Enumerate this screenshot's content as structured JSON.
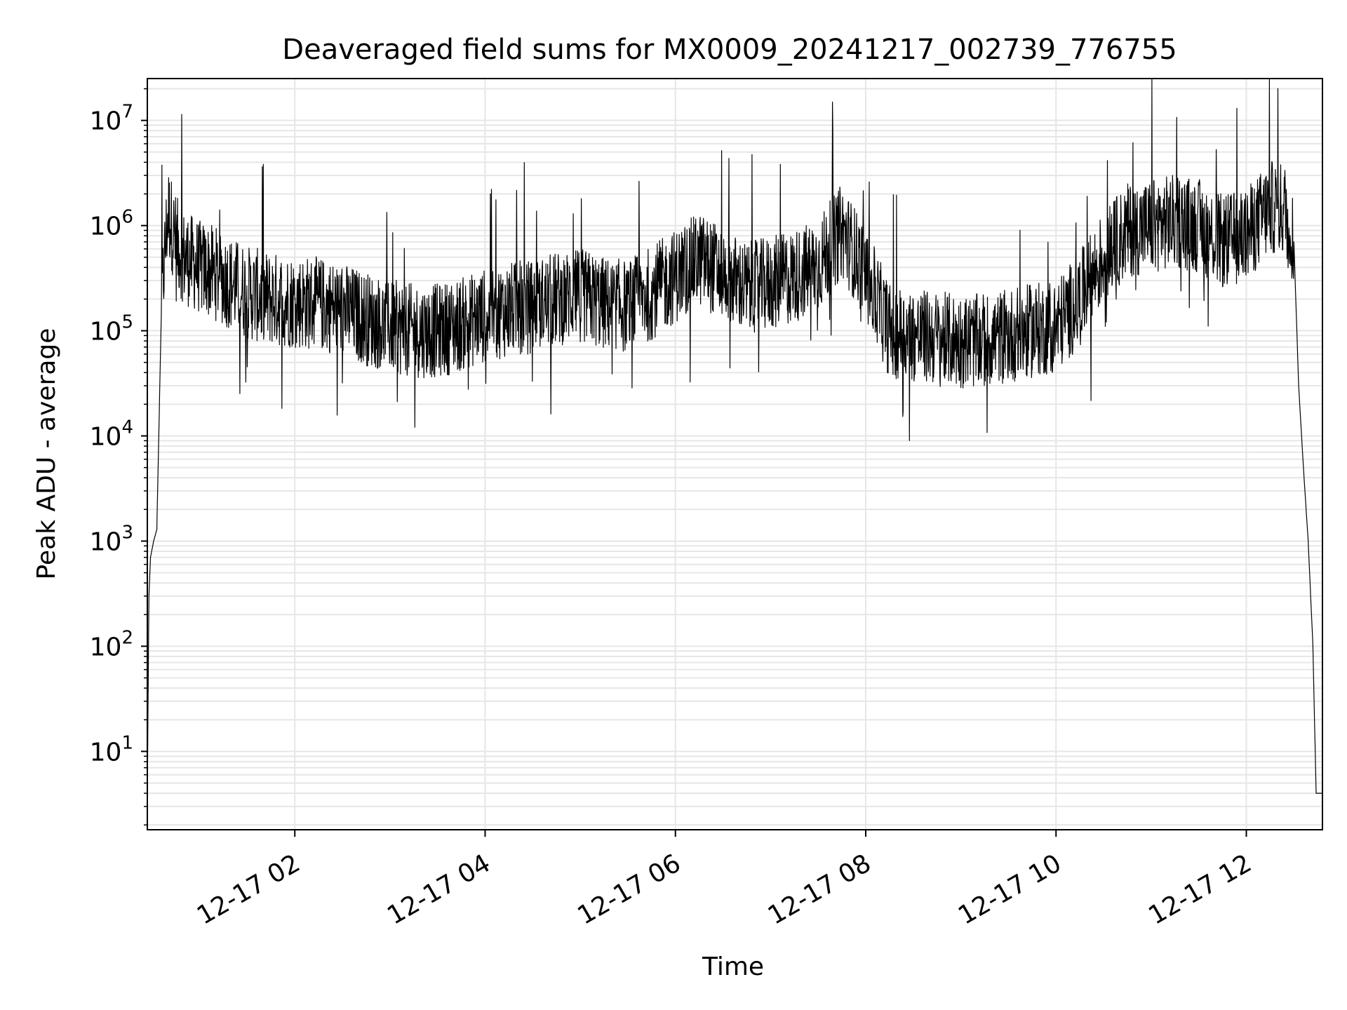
{
  "chart_data": {
    "type": "line",
    "title": "Deaveraged field sums for MX0009_20241217_002739_776755",
    "xlabel": "Time",
    "ylabel": "Peak ADU - average",
    "yscale": "log",
    "ylim": [
      1.8,
      25000000
    ],
    "xlim": [
      "2024-12-17 00:27",
      "2024-12-17 12:48"
    ],
    "grid": true,
    "x_tick_values": [
      "2024-12-17 02:00",
      "2024-12-17 04:00",
      "2024-12-17 06:00",
      "2024-12-17 08:00",
      "2024-12-17 10:00",
      "2024-12-17 12:00"
    ],
    "x_tick_labels": [
      "12-17 02",
      "12-17 04",
      "12-17 06",
      "12-17 08",
      "12-17 10",
      "12-17 12"
    ],
    "y_ticks": [
      10,
      100,
      1000,
      10000,
      100000,
      1000000,
      10000000
    ],
    "y_tick_labels": [
      {
        "base": "10",
        "exp": "1"
      },
      {
        "base": "10",
        "exp": "2"
      },
      {
        "base": "10",
        "exp": "3"
      },
      {
        "base": "10",
        "exp": "4"
      },
      {
        "base": "10",
        "exp": "5"
      },
      {
        "base": "10",
        "exp": "6"
      },
      {
        "base": "10",
        "exp": "7"
      }
    ],
    "line_color": "#000000",
    "grid_color": "#e6e6e6",
    "series": [
      {
        "x": [
          "2024-12-17 00:27",
          "2024-12-17 00:28",
          "2024-12-17 00:29",
          "2024-12-17 00:31",
          "2024-12-17 00:33",
          "2024-12-17 00:36",
          "2024-12-17 00:40",
          "2024-12-17 00:45",
          "2024-12-17 00:50",
          "2024-12-17 00:55",
          "2024-12-17 01:00",
          "2024-12-17 01:10",
          "2024-12-17 01:20",
          "2024-12-17 01:30",
          "2024-12-17 01:45",
          "2024-12-17 02:00",
          "2024-12-17 02:15",
          "2024-12-17 02:30",
          "2024-12-17 02:45",
          "2024-12-17 03:00",
          "2024-12-17 03:15",
          "2024-12-17 03:30",
          "2024-12-17 03:45",
          "2024-12-17 04:00",
          "2024-12-17 04:15",
          "2024-12-17 04:30",
          "2024-12-17 04:45",
          "2024-12-17 05:00",
          "2024-12-17 05:15",
          "2024-12-17 05:30",
          "2024-12-17 05:45",
          "2024-12-17 06:00",
          "2024-12-17 06:15",
          "2024-12-17 06:30",
          "2024-12-17 06:45",
          "2024-12-17 07:00",
          "2024-12-17 07:15",
          "2024-12-17 07:30",
          "2024-12-17 07:45",
          "2024-12-17 08:00",
          "2024-12-17 08:15",
          "2024-12-17 08:30",
          "2024-12-17 08:45",
          "2024-12-17 09:00",
          "2024-12-17 09:15",
          "2024-12-17 09:30",
          "2024-12-17 09:45",
          "2024-12-17 10:00",
          "2024-12-17 10:15",
          "2024-12-17 10:30",
          "2024-12-17 10:45",
          "2024-12-17 11:00",
          "2024-12-17 11:15",
          "2024-12-17 11:30",
          "2024-12-17 11:45",
          "2024-12-17 12:00",
          "2024-12-17 12:15",
          "2024-12-17 12:25",
          "2024-12-17 12:30",
          "2024-12-17 12:33",
          "2024-12-17 12:36",
          "2024-12-17 12:39",
          "2024-12-17 12:42",
          "2024-12-17 12:44",
          "2024-12-17 12:46",
          "2024-12-17 12:48"
        ],
        "y": [
          4,
          300,
          700,
          1000,
          1300,
          200000,
          1400000,
          700000,
          500000,
          450000,
          400000,
          350000,
          280000,
          230000,
          200000,
          190000,
          180000,
          160000,
          130000,
          110000,
          100000,
          100000,
          115000,
          140000,
          160000,
          170000,
          200000,
          220000,
          180000,
          170000,
          230000,
          330000,
          480000,
          350000,
          250000,
          280000,
          330000,
          420000,
          900000,
          350000,
          100000,
          90000,
          85000,
          80000,
          80000,
          90000,
          100000,
          110000,
          200000,
          500000,
          900000,
          1000000,
          1100000,
          1000000,
          700000,
          800000,
          1500000,
          1400000,
          700000,
          30000,
          5000,
          1000,
          100,
          4,
          4,
          4
        ]
      }
    ]
  }
}
